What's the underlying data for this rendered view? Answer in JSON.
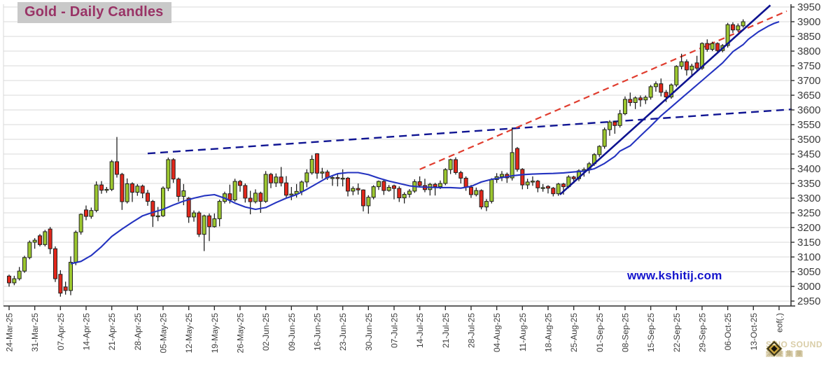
{
  "title": "Gold - Daily Candles",
  "watermark": "www.kshitij.com",
  "logo": {
    "line1": "SiNO SOUND",
    "cn": [
      "漢",
      "聲",
      "集",
      "團"
    ]
  },
  "chart_data": {
    "type": "candlestick",
    "title": "Gold - Daily Candles",
    "grid": "horizontal",
    "y_axis": {
      "side": "right",
      "min": 2950,
      "max": 3950,
      "step": 50
    },
    "x_axis": {
      "tick_every_candles": 5,
      "labels": [
        "24-Mar-25",
        "31-Mar-25",
        "07-Apr-25",
        "14-Apr-25",
        "21-Apr-25",
        "28-Apr-25",
        "05-May-25",
        "12-May-25",
        "19-May-25",
        "26-May-25",
        "02-Jun-25",
        "09-Jun-25",
        "16-Jun-25",
        "23-Jun-25",
        "30-Jun-25",
        "07-Jul-25",
        "14-Jul-25",
        "21-Jul-25",
        "28-Jul-25",
        "04-Aug-25",
        "11-Aug-25",
        "18-Aug-25",
        "25-Aug-25",
        "01-Sep-25",
        "08-Sep-25",
        "15-Sep-25",
        "22-Sep-25",
        "29-Sep-25",
        "06-Oct-25",
        "13-Oct-25"
      ],
      "end_label": "eof(.)",
      "end_label_index": 150
    },
    "colors": {
      "up": "#9cc72f",
      "down": "#e2271b",
      "candle_stroke": "#1f1f1f",
      "wick": "#111111",
      "ma": "#2433c0",
      "trend_solid": "#0e1390",
      "trend_dash_navy": "#101593",
      "trend_dash_red": "#e03c2e",
      "grid": "#d9d9d9",
      "axis": "#2f2f2f",
      "tick_label": "#3c3c3c",
      "title_fg": "#993366",
      "title_bg": "#c9c9c9",
      "watermark": "#1414cc",
      "logo": "#d9cda7"
    },
    "candles": [
      [
        3035,
        3040,
        2999,
        3012
      ],
      [
        3012,
        3036,
        3004,
        3026
      ],
      [
        3026,
        3066,
        3020,
        3052
      ],
      [
        3052,
        3104,
        3046,
        3098
      ],
      [
        3098,
        3156,
        3092,
        3150
      ],
      [
        3150,
        3164,
        3128,
        3157
      ],
      [
        3172,
        3178,
        3136,
        3142
      ],
      [
        3142,
        3192,
        3136,
        3186
      ],
      [
        3195,
        3202,
        3110,
        3128
      ],
      [
        3128,
        3136,
        3015,
        3026
      ],
      [
        3041,
        3055,
        2965,
        2977
      ],
      [
        2998,
        3016,
        2972,
        2986
      ],
      [
        2986,
        3102,
        2970,
        3082
      ],
      [
        3082,
        3190,
        3072,
        3184
      ],
      [
        3185,
        3248,
        3176,
        3245
      ],
      [
        3260,
        3275,
        3225,
        3238
      ],
      [
        3238,
        3268,
        3230,
        3258
      ],
      [
        3258,
        3357,
        3252,
        3345
      ],
      [
        3345,
        3358,
        3315,
        3327
      ],
      [
        3327,
        3338,
        3318,
        3330
      ],
      [
        3330,
        3430,
        3324,
        3424
      ],
      [
        3424,
        3508,
        3370,
        3381
      ],
      [
        3381,
        3386,
        3260,
        3288
      ],
      [
        3288,
        3367,
        3282,
        3349
      ],
      [
        3349,
        3354,
        3287,
        3320
      ],
      [
        3320,
        3348,
        3308,
        3341
      ],
      [
        3341,
        3346,
        3300,
        3317
      ],
      [
        3317,
        3328,
        3274,
        3289
      ],
      [
        3289,
        3294,
        3202,
        3239
      ],
      [
        3239,
        3270,
        3222,
        3240
      ],
      [
        3240,
        3340,
        3236,
        3334
      ],
      [
        3334,
        3438,
        3324,
        3431
      ],
      [
        3431,
        3436,
        3352,
        3365
      ],
      [
        3365,
        3370,
        3288,
        3306
      ],
      [
        3306,
        3348,
        3276,
        3325
      ],
      [
        3300,
        3304,
        3216,
        3236
      ],
      [
        3236,
        3258,
        3220,
        3250
      ],
      [
        3250,
        3256,
        3168,
        3177
      ],
      [
        3177,
        3244,
        3120,
        3240
      ],
      [
        3240,
        3248,
        3154,
        3203
      ],
      [
        3203,
        3248,
        3200,
        3230
      ],
      [
        3230,
        3295,
        3204,
        3289
      ],
      [
        3289,
        3322,
        3282,
        3315
      ],
      [
        3315,
        3346,
        3282,
        3294
      ],
      [
        3294,
        3366,
        3288,
        3357
      ],
      [
        3357,
        3362,
        3322,
        3343
      ],
      [
        3343,
        3350,
        3285,
        3300
      ],
      [
        3300,
        3325,
        3245,
        3288
      ],
      [
        3288,
        3330,
        3282,
        3317
      ],
      [
        3317,
        3322,
        3250,
        3289
      ],
      [
        3289,
        3392,
        3284,
        3381
      ],
      [
        3381,
        3386,
        3334,
        3352
      ],
      [
        3352,
        3384,
        3338,
        3372
      ],
      [
        3372,
        3406,
        3340,
        3352
      ],
      [
        3352,
        3375,
        3300,
        3310
      ],
      [
        3310,
        3338,
        3293,
        3314
      ],
      [
        3314,
        3348,
        3302,
        3323
      ],
      [
        3323,
        3360,
        3310,
        3355
      ],
      [
        3355,
        3398,
        3337,
        3386
      ],
      [
        3386,
        3446,
        3380,
        3432
      ],
      [
        3451,
        3453,
        3366,
        3385
      ],
      [
        3385,
        3403,
        3366,
        3389
      ],
      [
        3389,
        3396,
        3362,
        3369
      ],
      [
        3369,
        3377,
        3342,
        3370
      ],
      [
        3370,
        3383,
        3340,
        3368
      ],
      [
        3368,
        3398,
        3340,
        3368
      ],
      [
        3368,
        3372,
        3306,
        3324
      ],
      [
        3324,
        3340,
        3310,
        3333
      ],
      [
        3333,
        3350,
        3312,
        3328
      ],
      [
        3328,
        3330,
        3255,
        3274
      ],
      [
        3274,
        3310,
        3247,
        3303
      ],
      [
        3303,
        3344,
        3296,
        3339
      ],
      [
        3339,
        3360,
        3328,
        3357
      ],
      [
        3357,
        3365,
        3311,
        3326
      ],
      [
        3326,
        3345,
        3322,
        3337
      ],
      [
        3342,
        3346,
        3296,
        3333
      ],
      [
        3333,
        3340,
        3287,
        3301
      ],
      [
        3301,
        3320,
        3282,
        3313
      ],
      [
        3313,
        3331,
        3302,
        3324
      ],
      [
        3324,
        3364,
        3318,
        3356
      ],
      [
        3356,
        3374,
        3338,
        3343
      ],
      [
        3343,
        3366,
        3320,
        3329
      ],
      [
        3329,
        3352,
        3309,
        3347
      ],
      [
        3347,
        3352,
        3309,
        3339
      ],
      [
        3339,
        3360,
        3331,
        3350
      ],
      [
        3350,
        3402,
        3344,
        3397
      ],
      [
        3397,
        3434,
        3382,
        3431
      ],
      [
        3431,
        3439,
        3380,
        3387
      ],
      [
        3387,
        3393,
        3350,
        3368
      ],
      [
        3368,
        3374,
        3325,
        3337
      ],
      [
        3337,
        3345,
        3301,
        3312
      ],
      [
        3312,
        3336,
        3306,
        3326
      ],
      [
        3326,
        3330,
        3262,
        3270
      ],
      [
        3270,
        3297,
        3256,
        3289
      ],
      [
        3289,
        3368,
        3282,
        3363
      ],
      [
        3363,
        3385,
        3352,
        3373
      ],
      [
        3373,
        3392,
        3358,
        3381
      ],
      [
        3381,
        3387,
        3352,
        3369
      ],
      [
        3369,
        3540,
        3360,
        3455
      ],
      [
        3469,
        3474,
        3390,
        3398
      ],
      [
        3398,
        3402,
        3330,
        3345
      ],
      [
        3345,
        3366,
        3331,
        3355
      ],
      [
        3355,
        3374,
        3342,
        3358
      ],
      [
        3358,
        3362,
        3320,
        3335
      ],
      [
        3335,
        3348,
        3322,
        3336
      ],
      [
        3340,
        3344,
        3316,
        3334
      ],
      [
        3334,
        3338,
        3306,
        3315
      ],
      [
        3315,
        3352,
        3308,
        3348
      ],
      [
        3348,
        3352,
        3312,
        3339
      ],
      [
        3339,
        3378,
        3334,
        3372
      ],
      [
        3372,
        3376,
        3350,
        3366
      ],
      [
        3366,
        3398,
        3358,
        3393
      ],
      [
        3393,
        3404,
        3373,
        3397
      ],
      [
        3397,
        3423,
        3384,
        3417
      ],
      [
        3417,
        3453,
        3410,
        3448
      ],
      [
        3448,
        3480,
        3440,
        3476
      ],
      [
        3476,
        3540,
        3468,
        3533
      ],
      [
        3533,
        3565,
        3512,
        3559
      ],
      [
        3559,
        3563,
        3519,
        3547
      ],
      [
        3547,
        3600,
        3540,
        3587
      ],
      [
        3587,
        3646,
        3582,
        3636
      ],
      [
        3636,
        3659,
        3613,
        3625
      ],
      [
        3625,
        3646,
        3603,
        3641
      ],
      [
        3641,
        3649,
        3611,
        3634
      ],
      [
        3634,
        3649,
        3620,
        3643
      ],
      [
        3643,
        3685,
        3635,
        3679
      ],
      [
        3679,
        3697,
        3662,
        3689
      ],
      [
        3689,
        3707,
        3646,
        3660
      ],
      [
        3660,
        3668,
        3627,
        3644
      ],
      [
        3644,
        3690,
        3638,
        3685
      ],
      [
        3685,
        3752,
        3678,
        3748
      ],
      [
        3748,
        3791,
        3738,
        3764
      ],
      [
        3764,
        3772,
        3717,
        3736
      ],
      [
        3736,
        3757,
        3712,
        3749
      ],
      [
        3760,
        3784,
        3730,
        3742
      ],
      [
        3742,
        3830,
        3736,
        3826
      ],
      [
        3826,
        3840,
        3798,
        3806
      ],
      [
        3806,
        3832,
        3800,
        3826
      ],
      [
        3826,
        3830,
        3792,
        3802
      ],
      [
        3802,
        3824,
        3796,
        3819
      ],
      [
        3819,
        3896,
        3812,
        3890
      ],
      [
        3890,
        3898,
        3862,
        3872
      ],
      [
        3872,
        3894,
        3866,
        3886
      ],
      [
        3886,
        3908,
        3880,
        3900
      ]
    ],
    "ma_points": [
      [
        12,
        3077
      ],
      [
        14,
        3085
      ],
      [
        16,
        3105
      ],
      [
        18,
        3135
      ],
      [
        20,
        3170
      ],
      [
        22,
        3195
      ],
      [
        24,
        3218
      ],
      [
        26,
        3240
      ],
      [
        28,
        3252
      ],
      [
        30,
        3262
      ],
      [
        32,
        3277
      ],
      [
        34,
        3290
      ],
      [
        36,
        3300
      ],
      [
        38,
        3308
      ],
      [
        40,
        3312
      ],
      [
        42,
        3300
      ],
      [
        44,
        3283
      ],
      [
        46,
        3270
      ],
      [
        48,
        3262
      ],
      [
        50,
        3268
      ],
      [
        52,
        3285
      ],
      [
        54,
        3300
      ],
      [
        56,
        3312
      ],
      [
        58,
        3330
      ],
      [
        60,
        3350
      ],
      [
        62,
        3370
      ],
      [
        64,
        3383
      ],
      [
        66,
        3387
      ],
      [
        68,
        3387
      ],
      [
        70,
        3380
      ],
      [
        72,
        3368
      ],
      [
        74,
        3358
      ],
      [
        76,
        3350
      ],
      [
        78,
        3342
      ],
      [
        80,
        3338
      ],
      [
        82,
        3337
      ],
      [
        84,
        3336
      ],
      [
        86,
        3336
      ],
      [
        88,
        3334
      ],
      [
        90,
        3340
      ],
      [
        92,
        3355
      ],
      [
        94,
        3364
      ],
      [
        96,
        3370
      ],
      [
        98,
        3376
      ],
      [
        100,
        3380
      ],
      [
        102,
        3382
      ],
      [
        104,
        3383
      ],
      [
        106,
        3384
      ],
      [
        108,
        3386
      ],
      [
        110,
        3389
      ],
      [
        112,
        3392
      ],
      [
        114,
        3400
      ],
      [
        116,
        3418
      ],
      [
        118,
        3442
      ],
      [
        119,
        3460
      ],
      [
        121,
        3478
      ],
      [
        123,
        3512
      ],
      [
        125,
        3545
      ],
      [
        127,
        3580
      ],
      [
        129,
        3610
      ],
      [
        131,
        3640
      ],
      [
        133,
        3670
      ],
      [
        135,
        3700
      ],
      [
        137,
        3730
      ],
      [
        139,
        3760
      ],
      [
        141,
        3798
      ],
      [
        143,
        3822
      ],
      [
        144,
        3840
      ],
      [
        146,
        3866
      ],
      [
        148,
        3886
      ],
      [
        149,
        3894
      ],
      [
        150,
        3900
      ]
    ],
    "trendlines": [
      {
        "name": "navy-dashed-support",
        "layer": "back",
        "style": "dashed",
        "dash": "11 7",
        "width": 2.4,
        "color": "#101593",
        "from": [
          27,
          3452
        ],
        "to": [
          152.5,
          3602
        ]
      },
      {
        "name": "red-dashed-rising",
        "layer": "back",
        "style": "dashed",
        "dash": "9 6",
        "width": 2.2,
        "color": "#e03c2e",
        "from": [
          80,
          3398
        ],
        "to": [
          151.5,
          3936
        ]
      },
      {
        "name": "navy-solid-rising",
        "layer": "front",
        "style": "solid",
        "dash": "",
        "width": 2.6,
        "color": "#0e1390",
        "from": [
          107.3,
          3312
        ],
        "to": [
          148.3,
          3956
        ]
      }
    ]
  }
}
